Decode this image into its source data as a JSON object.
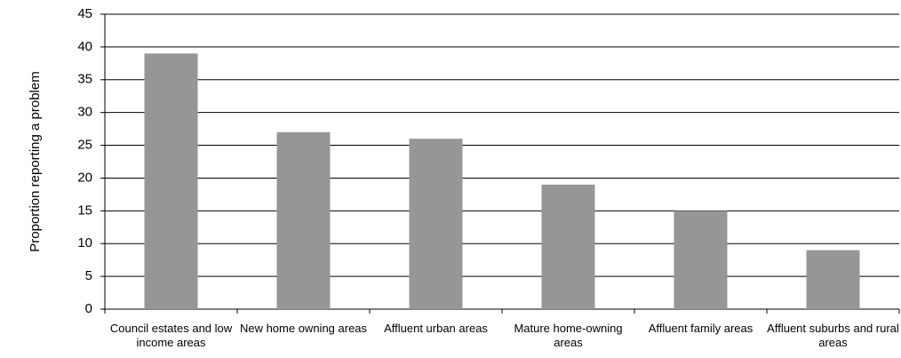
{
  "chart_data": {
    "type": "bar",
    "y_label": "Proportion reporting a problem",
    "categories": [
      "Council estates and low income areas",
      "New home owning areas",
      "Affluent urban areas",
      "Mature home-owning areas",
      "Affluent family areas",
      "Affluent suburbs and rural areas"
    ],
    "values": [
      39,
      27,
      26,
      19,
      15,
      9
    ],
    "color": "#969696",
    "ylim": [
      0,
      45
    ],
    "yticks": [
      0,
      5,
      10,
      15,
      20,
      25,
      30,
      35,
      40,
      45
    ],
    "grid": true
  }
}
